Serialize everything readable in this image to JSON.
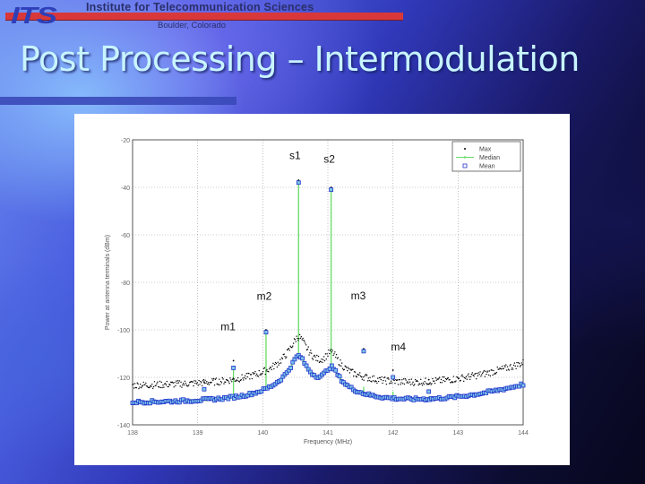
{
  "header": {
    "logo_text": "ITS",
    "org_name": "Institute for Telecommunication Sciences",
    "org_location": "Boulder, Colorado",
    "accent_bar_color": "#d9383a"
  },
  "slide": {
    "title": "Post Processing – Intermodulation"
  },
  "chart_data": {
    "type": "line",
    "title": "",
    "xlabel": "Frequency (MHz)",
    "ylabel": "Power at antenna terminals (dBm)",
    "xlim": [
      138,
      144
    ],
    "ylim": [
      -140,
      -20
    ],
    "xticks": [
      138,
      139,
      140,
      141,
      142,
      143,
      144
    ],
    "xtick_labels": [
      "138",
      "139",
      "140",
      "141",
      "142",
      "143",
      "144"
    ],
    "yticks": [
      -20,
      -40,
      -60,
      -80,
      -100,
      -120,
      -140
    ],
    "ytick_labels": [
      "-20",
      "-40",
      "-60",
      "-80",
      "-100",
      "-120",
      "-140"
    ],
    "grid": true,
    "legend_position": "upper right",
    "legend": [
      "Max",
      "Median",
      "Mean"
    ],
    "series_styles": {
      "Max": {
        "marker": "dot",
        "color": "#000000"
      },
      "Median": {
        "marker": "dot-line",
        "color": "#66dd66"
      },
      "Mean": {
        "marker": "square",
        "color": "#2233cc"
      }
    },
    "noise_floor": {
      "Max": -124,
      "Median": -131,
      "Mean": -131,
      "right_edge_rise": {
        "Max_at_144": -114,
        "Mean_at_144": -123
      }
    },
    "peaks": [
      {
        "label": "s1",
        "freq": 140.55,
        "Max": -37,
        "Median": -38,
        "Mean": -38
      },
      {
        "label": "s2",
        "freq": 141.05,
        "Max": -40,
        "Median": -41,
        "Mean": -41
      },
      {
        "label": "m2",
        "freq": 140.05,
        "Max": -100,
        "Median": -101,
        "Mean": -101
      },
      {
        "label": "m1",
        "freq": 139.55,
        "Max": -113,
        "Median": -116,
        "Mean": -116
      },
      {
        "label": "m3",
        "freq": 141.55,
        "Max": -108,
        "Median": -124,
        "Mean": -109
      },
      {
        "label": "m4",
        "freq": 142.0,
        "Max": -117,
        "Median": -126,
        "Mean": -120
      },
      {
        "label": "",
        "freq": 139.1,
        "Max": -122,
        "Median": -128,
        "Mean": -125
      },
      {
        "label": "",
        "freq": 142.55,
        "Max": -121,
        "Median": -128,
        "Mean": -126
      }
    ],
    "bumps": [
      {
        "freq": 140.55,
        "Max": -103,
        "Mean": -111,
        "width_mhz": 0.25
      },
      {
        "freq": 141.05,
        "Max": -110,
        "Mean": -116,
        "width_mhz": 0.25
      }
    ]
  }
}
